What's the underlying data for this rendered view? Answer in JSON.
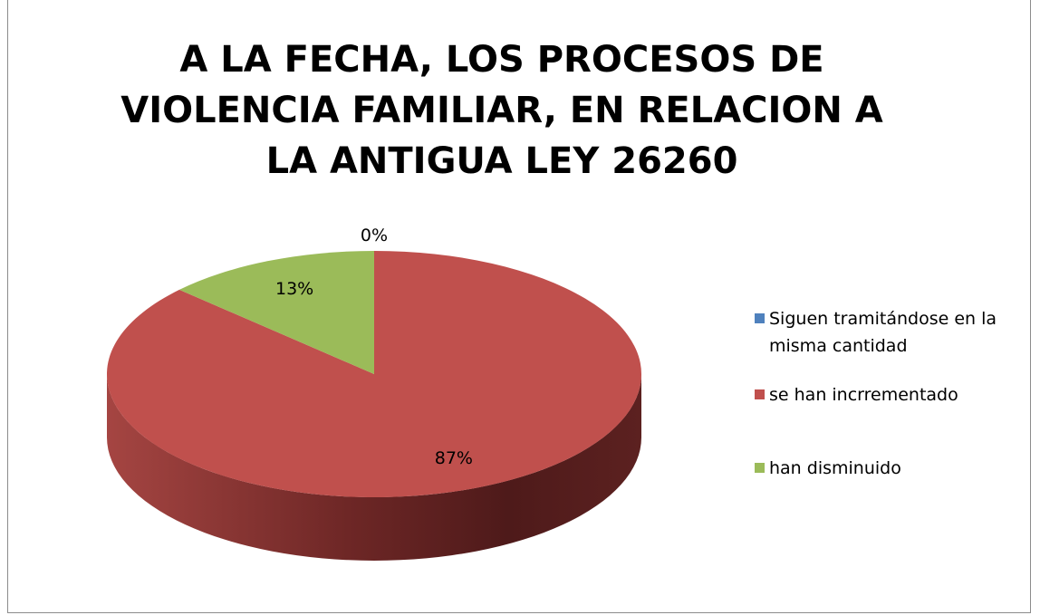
{
  "chart_data": {
    "type": "pie",
    "title": "A LA FECHA, LOS PROCESOS DE VIOLENCIA FAMILIAR, EN RELACION A LA ANTIGUA LEY 26260",
    "categories": [
      "Siguen tramitándose en la misma cantidad",
      "se han incrrementado",
      "han disminuido"
    ],
    "values": [
      0,
      87,
      13
    ],
    "value_labels": [
      "0%",
      "87%",
      "13%"
    ],
    "colors": [
      "#4f81bd",
      "#c0504d",
      "#9bbb59"
    ],
    "legend": "right"
  }
}
